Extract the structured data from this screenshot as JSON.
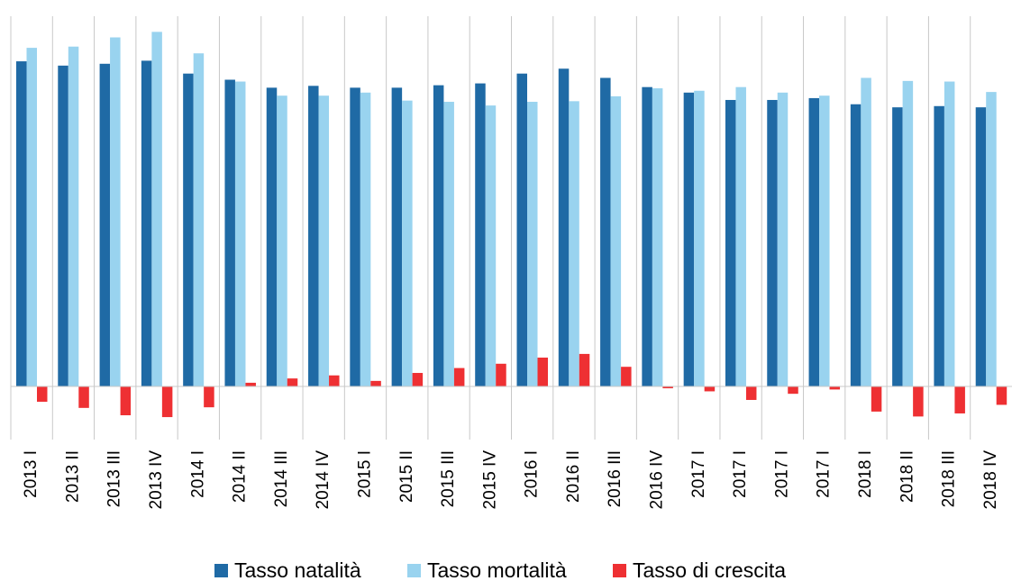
{
  "chart_data": {
    "type": "bar",
    "title": "",
    "xlabel": "",
    "ylabel": "",
    "ylim": [
      -8,
      60
    ],
    "grid": "vertical-category-separators",
    "legend_position": "bottom",
    "categories": [
      "2013 I",
      "2013 II",
      "2013 III",
      "2013 IV",
      "2014 I",
      "2014 II",
      "2014 III",
      "2014 IV",
      "2015 I",
      "2015 II",
      "2015 III",
      "2015 IV",
      "2016 I",
      "2016 II",
      "2016 III",
      "2016 IV",
      "2017 I",
      "2017 I",
      "2017 I",
      "2017 I",
      "2018 I",
      "2018 II",
      "2018 III",
      "2018 IV"
    ],
    "series": [
      {
        "name": "Tasso natalità",
        "color": "#1f6aa5",
        "values": [
          53.0,
          52.3,
          52.6,
          53.1,
          51.0,
          50.0,
          48.7,
          49.0,
          48.7,
          48.7,
          49.1,
          49.4,
          51.0,
          51.8,
          50.3,
          48.8,
          47.9,
          46.7,
          46.7,
          47.0,
          46.0,
          45.5,
          45.7,
          45.5
        ]
      },
      {
        "name": "Tasso mortalità",
        "color": "#99d3ef",
        "values": [
          55.2,
          55.4,
          56.9,
          57.8,
          54.3,
          49.7,
          47.4,
          47.4,
          47.9,
          46.6,
          46.4,
          45.8,
          46.4,
          46.5,
          47.3,
          48.6,
          48.2,
          48.8,
          47.9,
          47.4,
          50.3,
          49.8,
          49.7,
          48.0
        ]
      },
      {
        "name": "Tasso di crescita",
        "color": "#ee3033",
        "values": [
          -2.5,
          -3.5,
          -4.7,
          -5.0,
          -3.4,
          0.6,
          1.3,
          1.8,
          0.9,
          2.2,
          3.0,
          3.7,
          4.7,
          5.3,
          3.2,
          -0.3,
          -0.8,
          -2.2,
          -1.2,
          -0.5,
          -4.1,
          -4.9,
          -4.4,
          -3.0
        ]
      }
    ]
  }
}
